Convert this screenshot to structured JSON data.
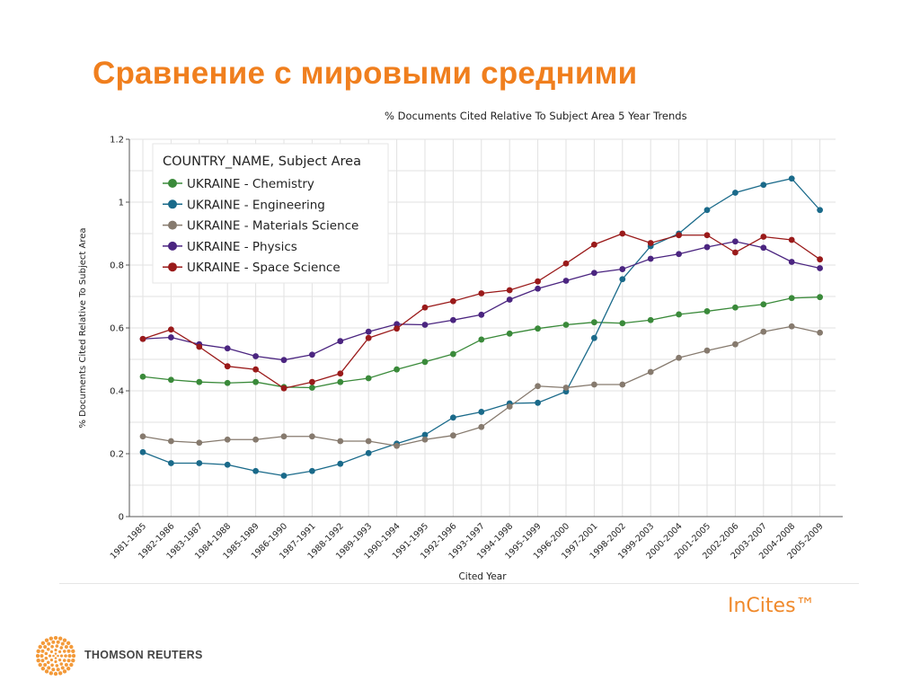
{
  "slide": {
    "title": "Сравнение с мировыми средними"
  },
  "footer": {
    "product": "InCites™",
    "company": "THOMSON REUTERS"
  },
  "chart_data": {
    "type": "line",
    "title": "% Documents Cited Relative To Subject Area 5 Year Trends",
    "xlabel": "Cited Year",
    "ylabel": "% Documents Cited Relative To Subject Area",
    "ylim": [
      0,
      1.2
    ],
    "yticks": [
      "0",
      "0.2",
      "0.4",
      "0.6",
      "0.8",
      "1",
      "1.2"
    ],
    "grid": true,
    "legend_title": "COUNTRY_NAME, Subject Area",
    "legend_position": "top-left",
    "categories": [
      "1981-1985",
      "1982-1986",
      "1983-1987",
      "1984-1988",
      "1985-1989",
      "1986-1990",
      "1987-1991",
      "1988-1992",
      "1989-1993",
      "1990-1994",
      "1991-1995",
      "1992-1996",
      "1993-1997",
      "1994-1998",
      "1995-1999",
      "1996-2000",
      "1997-2001",
      "1998-2002",
      "1999-2003",
      "2000-2004",
      "2001-2005",
      "2002-2006",
      "2003-2007",
      "2004-2008",
      "2005-2009"
    ],
    "series": [
      {
        "name": "UKRAINE - Chemistry",
        "color": "#3a8a3a",
        "values": [
          0.445,
          0.435,
          0.428,
          0.425,
          0.428,
          0.412,
          0.41,
          0.428,
          0.44,
          0.468,
          0.492,
          0.517,
          0.563,
          0.582,
          0.598,
          0.61,
          0.618,
          0.615,
          0.625,
          0.643,
          0.653,
          0.665,
          0.675,
          0.695,
          0.698
        ]
      },
      {
        "name": "UKRAINE - Engineering",
        "color": "#1a6a8a",
        "values": [
          0.205,
          0.17,
          0.17,
          0.165,
          0.145,
          0.13,
          0.145,
          0.168,
          0.202,
          0.232,
          0.26,
          0.315,
          0.333,
          0.36,
          0.362,
          0.398,
          0.568,
          0.755,
          0.86,
          0.9,
          0.975,
          1.03,
          1.055,
          1.075,
          0.975
        ]
      },
      {
        "name": "UKRAINE - Materials Science",
        "color": "#867a6e",
        "values": [
          0.255,
          0.24,
          0.235,
          0.245,
          0.245,
          0.255,
          0.255,
          0.24,
          0.24,
          0.225,
          0.245,
          0.258,
          0.285,
          0.35,
          0.415,
          0.41,
          0.42,
          0.42,
          0.46,
          0.505,
          0.528,
          0.548,
          0.588,
          0.605,
          0.585
        ]
      },
      {
        "name": "UKRAINE - Physics",
        "color": "#4b2580",
        "values": [
          0.565,
          0.57,
          0.548,
          0.535,
          0.51,
          0.498,
          0.515,
          0.558,
          0.588,
          0.612,
          0.61,
          0.625,
          0.642,
          0.69,
          0.725,
          0.75,
          0.775,
          0.787,
          0.82,
          0.835,
          0.857,
          0.875,
          0.855,
          0.81,
          0.79
        ]
      },
      {
        "name": "UKRAINE - Space Science",
        "color": "#9a1a1a",
        "values": [
          0.565,
          0.595,
          0.54,
          0.478,
          0.468,
          0.408,
          0.428,
          0.455,
          0.568,
          0.598,
          0.665,
          0.685,
          0.71,
          0.72,
          0.748,
          0.805,
          0.865,
          0.9,
          0.87,
          0.895,
          0.895,
          0.84,
          0.89,
          0.88,
          0.818
        ]
      }
    ]
  }
}
